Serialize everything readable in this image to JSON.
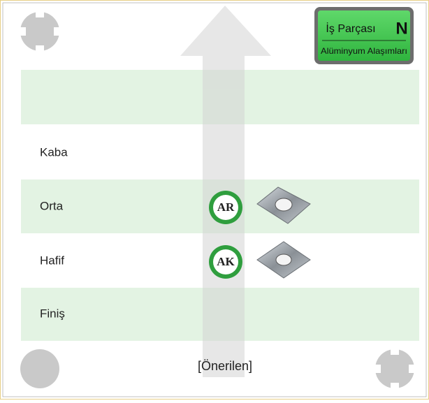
{
  "badge": {
    "title": "İş Parçası",
    "grade": "N",
    "material": "Alüminyum Alaşımları"
  },
  "rows": [
    {
      "label": "Kaba"
    },
    {
      "label": "Orta",
      "grade": "AR"
    },
    {
      "label": "Hafif",
      "grade": "AK"
    },
    {
      "label": "Finiş"
    }
  ],
  "footer": "[Önerilen]"
}
